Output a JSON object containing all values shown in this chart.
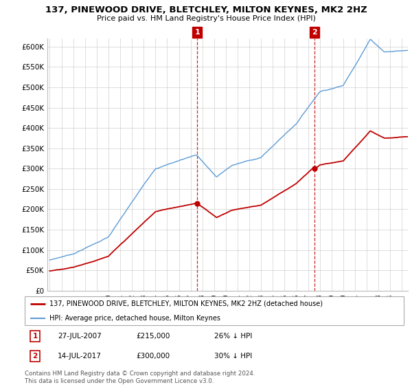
{
  "title": "137, PINEWOOD DRIVE, BLETCHLEY, MILTON KEYNES, MK2 2HZ",
  "subtitle": "Price paid vs. HM Land Registry's House Price Index (HPI)",
  "legend_line1": "137, PINEWOOD DRIVE, BLETCHLEY, MILTON KEYNES, MK2 2HZ (detached house)",
  "legend_line2": "HPI: Average price, detached house, Milton Keynes",
  "ann1_label": "1",
  "ann1_date": "27-JUL-2007",
  "ann1_price": "£215,000",
  "ann1_hpi": "26% ↓ HPI",
  "ann2_label": "2",
  "ann2_date": "14-JUL-2017",
  "ann2_price": "£300,000",
  "ann2_hpi": "30% ↓ HPI",
  "footer": "Contains HM Land Registry data © Crown copyright and database right 2024.\nThis data is licensed under the Open Government Licence v3.0.",
  "hpi_color": "#5b9bd5",
  "price_color": "#c00000",
  "ylim": [
    0,
    620000
  ],
  "yticks": [
    0,
    50000,
    100000,
    150000,
    200000,
    250000,
    300000,
    350000,
    400000,
    450000,
    500000,
    550000,
    600000
  ],
  "ytick_labels": [
    "£0",
    "£50K",
    "£100K",
    "£150K",
    "£200K",
    "£250K",
    "£300K",
    "£350K",
    "£400K",
    "£450K",
    "£500K",
    "£550K",
    "£600K"
  ],
  "marker1_x": 2007.57,
  "marker1_y": 215000,
  "marker2_x": 2017.54,
  "marker2_y": 300000,
  "vline1_x": 2007.57,
  "vline2_x": 2017.54,
  "xlim_left": 1994.8,
  "xlim_right": 2025.5
}
